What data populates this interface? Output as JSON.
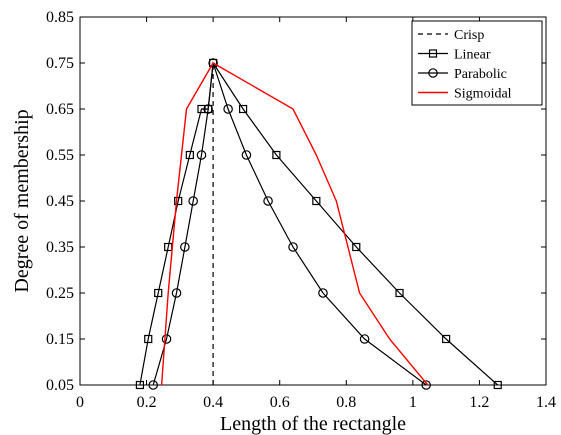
{
  "chart_data": {
    "type": "line",
    "title": "",
    "xlabel": "Length of the rectangle",
    "ylabel": "Degree of membership",
    "xlim": [
      0,
      1.4
    ],
    "ylim": [
      0.05,
      0.85
    ],
    "xticks": [
      0,
      0.2,
      0.4,
      0.6,
      0.8,
      1,
      1.2,
      1.4
    ],
    "xtick_labels": [
      "0",
      "0.2",
      "0.4",
      "0.6",
      "0.8",
      "1",
      "1.2",
      "1.4"
    ],
    "yticks": [
      0.05,
      0.15,
      0.25,
      0.35,
      0.45,
      0.55,
      0.65,
      0.75,
      0.85
    ],
    "ytick_labels": [
      "0.05",
      "0.15",
      "0.25",
      "0.35",
      "0.45",
      "0.55",
      "0.65",
      "0.75",
      "0.85"
    ],
    "grid": false,
    "legend_position": "top-right",
    "series": [
      {
        "name": "Crisp",
        "color": "#000000",
        "style": "dashed",
        "marker": "none",
        "x": [
          0.4,
          0.4
        ],
        "y": [
          0.05,
          0.75
        ]
      },
      {
        "name": "Linear",
        "color": "#000000",
        "style": "solid",
        "marker": "square",
        "x": [
          0.18,
          0.205,
          0.235,
          0.265,
          0.295,
          0.33,
          0.365,
          0.385,
          0.4,
          0.49,
          0.59,
          0.71,
          0.83,
          0.96,
          1.1,
          1.255
        ],
        "y": [
          0.05,
          0.15,
          0.25,
          0.35,
          0.45,
          0.55,
          0.65,
          0.65,
          0.75,
          0.65,
          0.55,
          0.45,
          0.35,
          0.25,
          0.15,
          0.05
        ]
      },
      {
        "name": "Parabolic",
        "color": "#000000",
        "style": "solid",
        "marker": "circle",
        "x": [
          0.22,
          0.26,
          0.29,
          0.315,
          0.34,
          0.365,
          0.385,
          0.4,
          0.445,
          0.5,
          0.565,
          0.64,
          0.73,
          0.855,
          1.04
        ],
        "y": [
          0.05,
          0.15,
          0.25,
          0.35,
          0.45,
          0.55,
          0.65,
          0.75,
          0.65,
          0.55,
          0.45,
          0.35,
          0.25,
          0.15,
          0.05
        ]
      },
      {
        "name": "Sigmoidal",
        "color": "#ff0000",
        "style": "solid",
        "marker": "none",
        "x": [
          0.245,
          0.265,
          0.29,
          0.32,
          0.4,
          0.64,
          0.71,
          0.77,
          0.84,
          0.93,
          1.045
        ],
        "y": [
          0.05,
          0.25,
          0.45,
          0.65,
          0.75,
          0.65,
          0.55,
          0.45,
          0.25,
          0.15,
          0.05
        ]
      }
    ]
  }
}
